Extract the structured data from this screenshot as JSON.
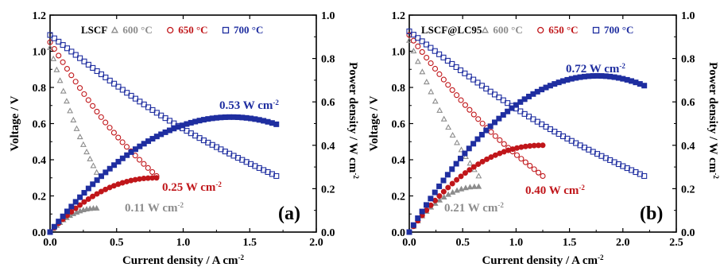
{
  "chart_data": [
    {
      "panel": "(a)",
      "type": "line",
      "title": "",
      "legend_label": "LSCF",
      "legend_position": "top",
      "xlabel": "Current density / A cm",
      "xlabel_sup": "-2",
      "ylabel": "Voltage / V",
      "ylabel2": "Power density / W cm",
      "ylabel2_sup": "-2",
      "xlim": [
        0,
        2.0
      ],
      "ylim": [
        0,
        1.2
      ],
      "ylim2": [
        0,
        1.0
      ],
      "x_ticks": [
        "0.0",
        "0.5",
        "1.0",
        "1.5",
        "2.0"
      ],
      "y_ticks": [
        "0.0",
        "0.2",
        "0.4",
        "0.6",
        "0.8",
        "1.0",
        "1.2"
      ],
      "y2_ticks": [
        "0.0",
        "0.2",
        "0.4",
        "0.6",
        "0.8",
        "1.0"
      ],
      "grid": false,
      "series": [
        {
          "name": "600 °C",
          "color": "#8c8c8c",
          "marker": "triangle",
          "jmax": 0.35,
          "voc": 1.02,
          "v_end": 0.33,
          "pmax": 0.11
        },
        {
          "name": "650 °C",
          "color": "#c0161a",
          "marker": "circle",
          "jmax": 0.8,
          "voc": 1.05,
          "v_end": 0.31,
          "pmax": 0.25
        },
        {
          "name": "700 °C",
          "color": "#1f2ea0",
          "marker": "square",
          "jmax": 1.7,
          "voc": 1.09,
          "v_end": 0.31,
          "pmax": 0.53
        }
      ],
      "annotations": [
        {
          "text": "0.11 W cm",
          "sup": "-2",
          "color": "#8c8c8c"
        },
        {
          "text": "0.25 W cm",
          "sup": "-2",
          "color": "#c0161a"
        },
        {
          "text": "0.53 W cm",
          "sup": "-2",
          "color": "#1f2ea0"
        }
      ]
    },
    {
      "panel": "(b)",
      "type": "line",
      "title": "",
      "legend_label": "LSCF@LC95",
      "legend_position": "top",
      "xlabel": "Current density / A cm",
      "xlabel_sup": "-2",
      "ylabel": "Voltage / V",
      "ylabel2": "Power density / W cm",
      "ylabel2_sup": "-2",
      "xlim": [
        0,
        2.5
      ],
      "ylim": [
        0,
        1.2
      ],
      "ylim2": [
        0,
        1.0
      ],
      "x_ticks": [
        "0.0",
        "0.5",
        "1.0",
        "1.5",
        "2.0",
        "2.5"
      ],
      "y_ticks": [
        "0.0",
        "0.2",
        "0.4",
        "0.6",
        "0.8",
        "1.0",
        "1.2"
      ],
      "y2_ticks": [
        "0.0",
        "0.2",
        "0.4",
        "0.6",
        "0.8",
        "1.0"
      ],
      "grid": false,
      "series": [
        {
          "name": "600 °C",
          "color": "#8c8c8c",
          "marker": "triangle",
          "jmax": 0.65,
          "voc": 1.06,
          "v_end": 0.31,
          "pmax": 0.21
        },
        {
          "name": "650 °C",
          "color": "#c0161a",
          "marker": "circle",
          "jmax": 1.25,
          "voc": 1.09,
          "v_end": 0.31,
          "pmax": 0.4
        },
        {
          "name": "700 °C",
          "color": "#1f2ea0",
          "marker": "square",
          "jmax": 2.2,
          "voc": 1.11,
          "v_end": 0.31,
          "pmax": 0.72
        }
      ],
      "annotations": [
        {
          "text": "0.21 W cm",
          "sup": "-2",
          "color": "#8c8c8c"
        },
        {
          "text": "0.40 W cm",
          "sup": "-2",
          "color": "#c0161a"
        },
        {
          "text": "0.72 W cm",
          "sup": "-2",
          "color": "#1f2ea0"
        }
      ]
    }
  ]
}
